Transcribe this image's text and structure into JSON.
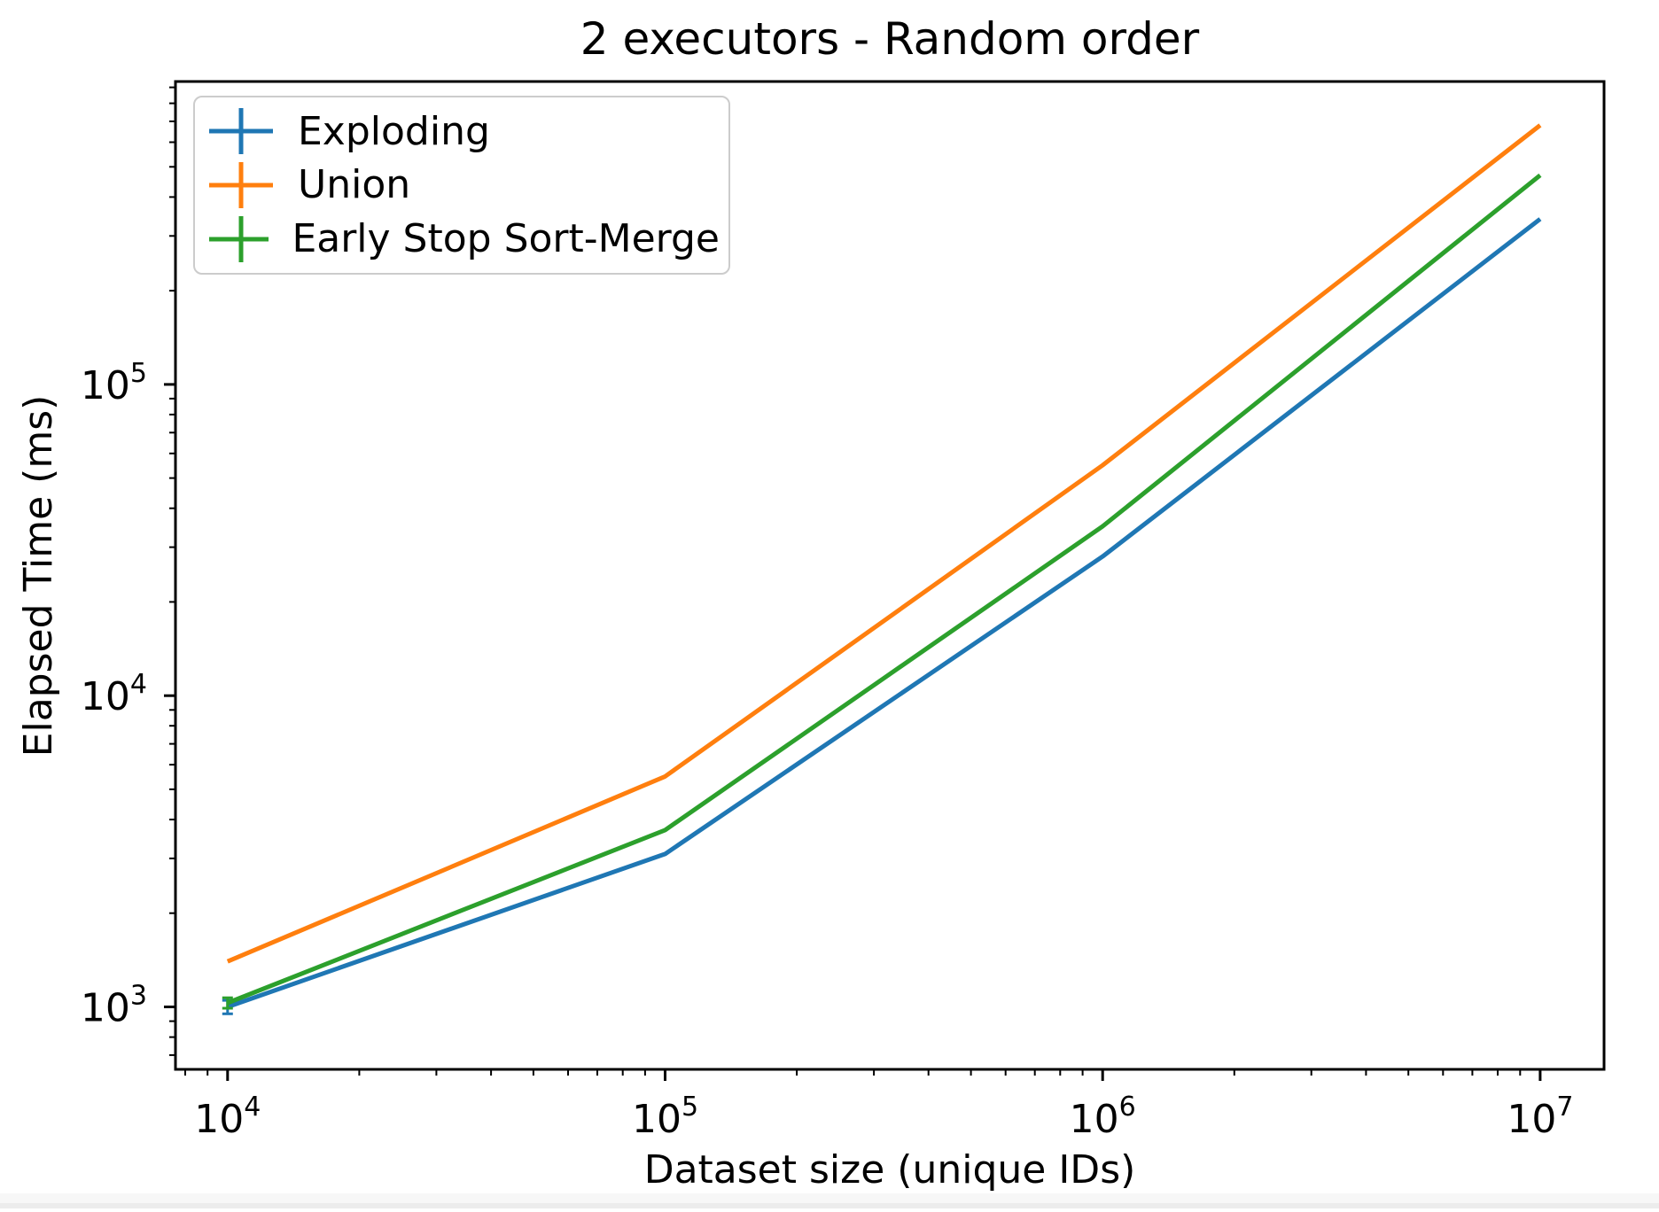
{
  "chart_data": {
    "type": "line",
    "title": "2 executors - Random order",
    "xlabel": "Dataset size (unique IDs)",
    "ylabel": "Elapsed Time (ms)",
    "x_scale": "log",
    "y_scale": "log",
    "x": [
      10000,
      100000,
      1000000,
      10000000
    ],
    "series": [
      {
        "name": "Exploding",
        "color": "#1f77b4",
        "values": [
          1000,
          3100,
          28000,
          340000
        ],
        "yerr": [
          50,
          0,
          0,
          0
        ]
      },
      {
        "name": "Union",
        "color": "#ff7f0e",
        "values": [
          1400,
          5500,
          55000,
          680000
        ],
        "yerr": [
          0,
          0,
          0,
          0
        ]
      },
      {
        "name": "Early Stop Sort-Merge",
        "color": "#2ca02c",
        "values": [
          1030,
          3700,
          35000,
          470000
        ],
        "yerr": [
          40,
          0,
          0,
          0
        ]
      }
    ],
    "xlim": [
      7600,
      14000000
    ],
    "ylim": [
      630,
      940000
    ],
    "x_tick_exponents": [
      4,
      5,
      6,
      7
    ],
    "y_tick_exponents": [
      3,
      4,
      5
    ],
    "legend_position": "upper left",
    "grid": false,
    "marker_style": "errorbar-cross",
    "axis_color": "#000000",
    "background_color": "#ffffff",
    "bottom_strip_colors": [
      "#f7f7f7",
      "#ececec"
    ]
  }
}
